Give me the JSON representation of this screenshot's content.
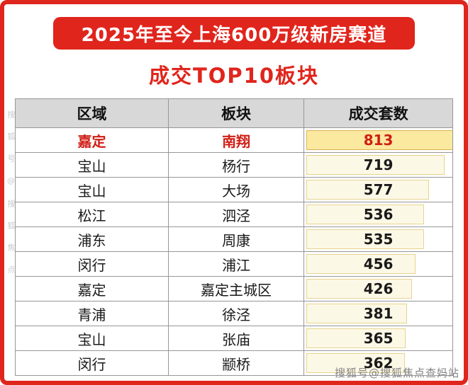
{
  "banner": {
    "title": "2025年至今上海600万级新房赛道"
  },
  "subtitle": "成交TOP10板块",
  "table": {
    "headers": [
      "区域",
      "板块",
      "成交套数"
    ],
    "rows": [
      {
        "region": "嘉定",
        "plate": "南翔",
        "count": 813,
        "highlight": true
      },
      {
        "region": "宝山",
        "plate": "杨行",
        "count": 719,
        "highlight": false
      },
      {
        "region": "宝山",
        "plate": "大场",
        "count": 577,
        "highlight": false
      },
      {
        "region": "松江",
        "plate": "泗泾",
        "count": 536,
        "highlight": false
      },
      {
        "region": "浦东",
        "plate": "周康",
        "count": 535,
        "highlight": false
      },
      {
        "region": "闵行",
        "plate": "浦江",
        "count": 456,
        "highlight": false
      },
      {
        "region": "嘉定",
        "plate": "嘉定主城区",
        "count": 426,
        "highlight": false
      },
      {
        "region": "青浦",
        "plate": "徐泾",
        "count": 381,
        "highlight": false
      },
      {
        "region": "宝山",
        "plate": "张庙",
        "count": 365,
        "highlight": false
      },
      {
        "region": "闵行",
        "plate": "颛桥",
        "count": 362,
        "highlight": false
      }
    ]
  },
  "watermark": {
    "bottom": "搜狐号@搜狐焦点查妈站",
    "side": "搜狐号@搜狐焦点"
  },
  "colors": {
    "accent_red": "#e0251c",
    "highlight_bar": "#fbe9a0",
    "bar_fill": "#fcf8e6",
    "header_bg": "#d8d8d8"
  },
  "chart_data": {
    "type": "table",
    "title": "2025年至今上海600万级新房赛道 成交TOP10板块",
    "columns": [
      "区域",
      "板块",
      "成交套数"
    ],
    "rows": [
      [
        "嘉定",
        "南翔",
        813
      ],
      [
        "宝山",
        "杨行",
        719
      ],
      [
        "宝山",
        "大场",
        577
      ],
      [
        "松江",
        "泗泾",
        536
      ],
      [
        "浦东",
        "周康",
        535
      ],
      [
        "闵行",
        "浦江",
        456
      ],
      [
        "嘉定",
        "嘉定主城区",
        426
      ],
      [
        "青浦",
        "徐泾",
        381
      ],
      [
        "宝山",
        "张庙",
        365
      ],
      [
        "闵行",
        "颛桥",
        362
      ]
    ],
    "value_column": "成交套数",
    "bar_max": 813,
    "highlight_row_index": 0
  }
}
